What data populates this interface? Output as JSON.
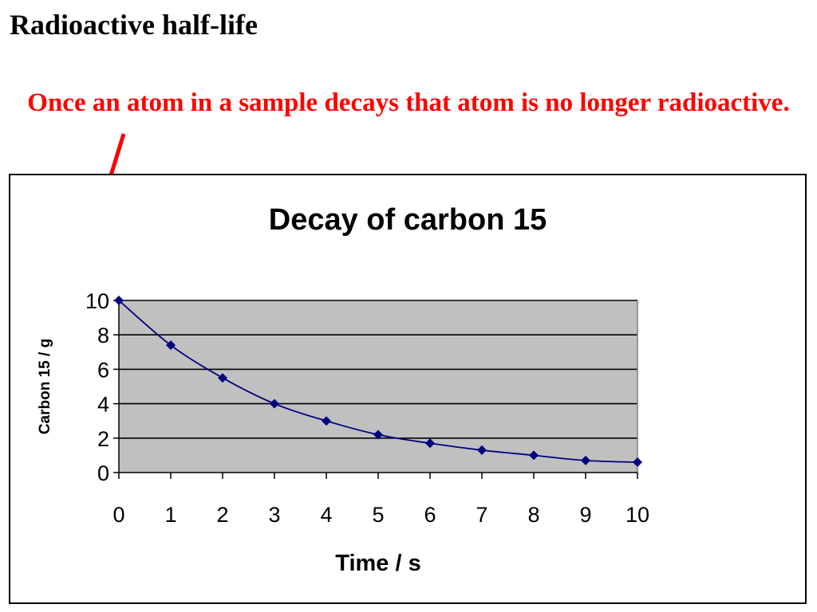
{
  "slide": {
    "title": "Radioactive half-life",
    "subtitle": "Once an atom in a sample decays that atom is no longer radioactive."
  },
  "colors": {
    "subtitle": "#ff0000",
    "plot_background": "#c0c0c0",
    "series": "#000080"
  },
  "chart_data": {
    "type": "line",
    "title": "Decay of carbon 15",
    "xlabel": "Time / s",
    "ylabel": "Carbon 15 / g",
    "xlim": [
      0,
      10
    ],
    "ylim": [
      0,
      10
    ],
    "x_ticks": [
      0,
      1,
      2,
      3,
      4,
      5,
      6,
      7,
      8,
      9,
      10
    ],
    "y_ticks": [
      0,
      2,
      4,
      6,
      8,
      10
    ],
    "grid": "horizontal",
    "legend": "none",
    "marker": "diamond",
    "smoothed": true,
    "series": [
      {
        "x": [
          0,
          1,
          2,
          3,
          4,
          5,
          6,
          7,
          8,
          9,
          10
        ],
        "values": [
          10,
          7.4,
          5.5,
          4.0,
          3.0,
          2.2,
          1.7,
          1.3,
          1.0,
          0.7,
          0.6
        ]
      }
    ]
  }
}
